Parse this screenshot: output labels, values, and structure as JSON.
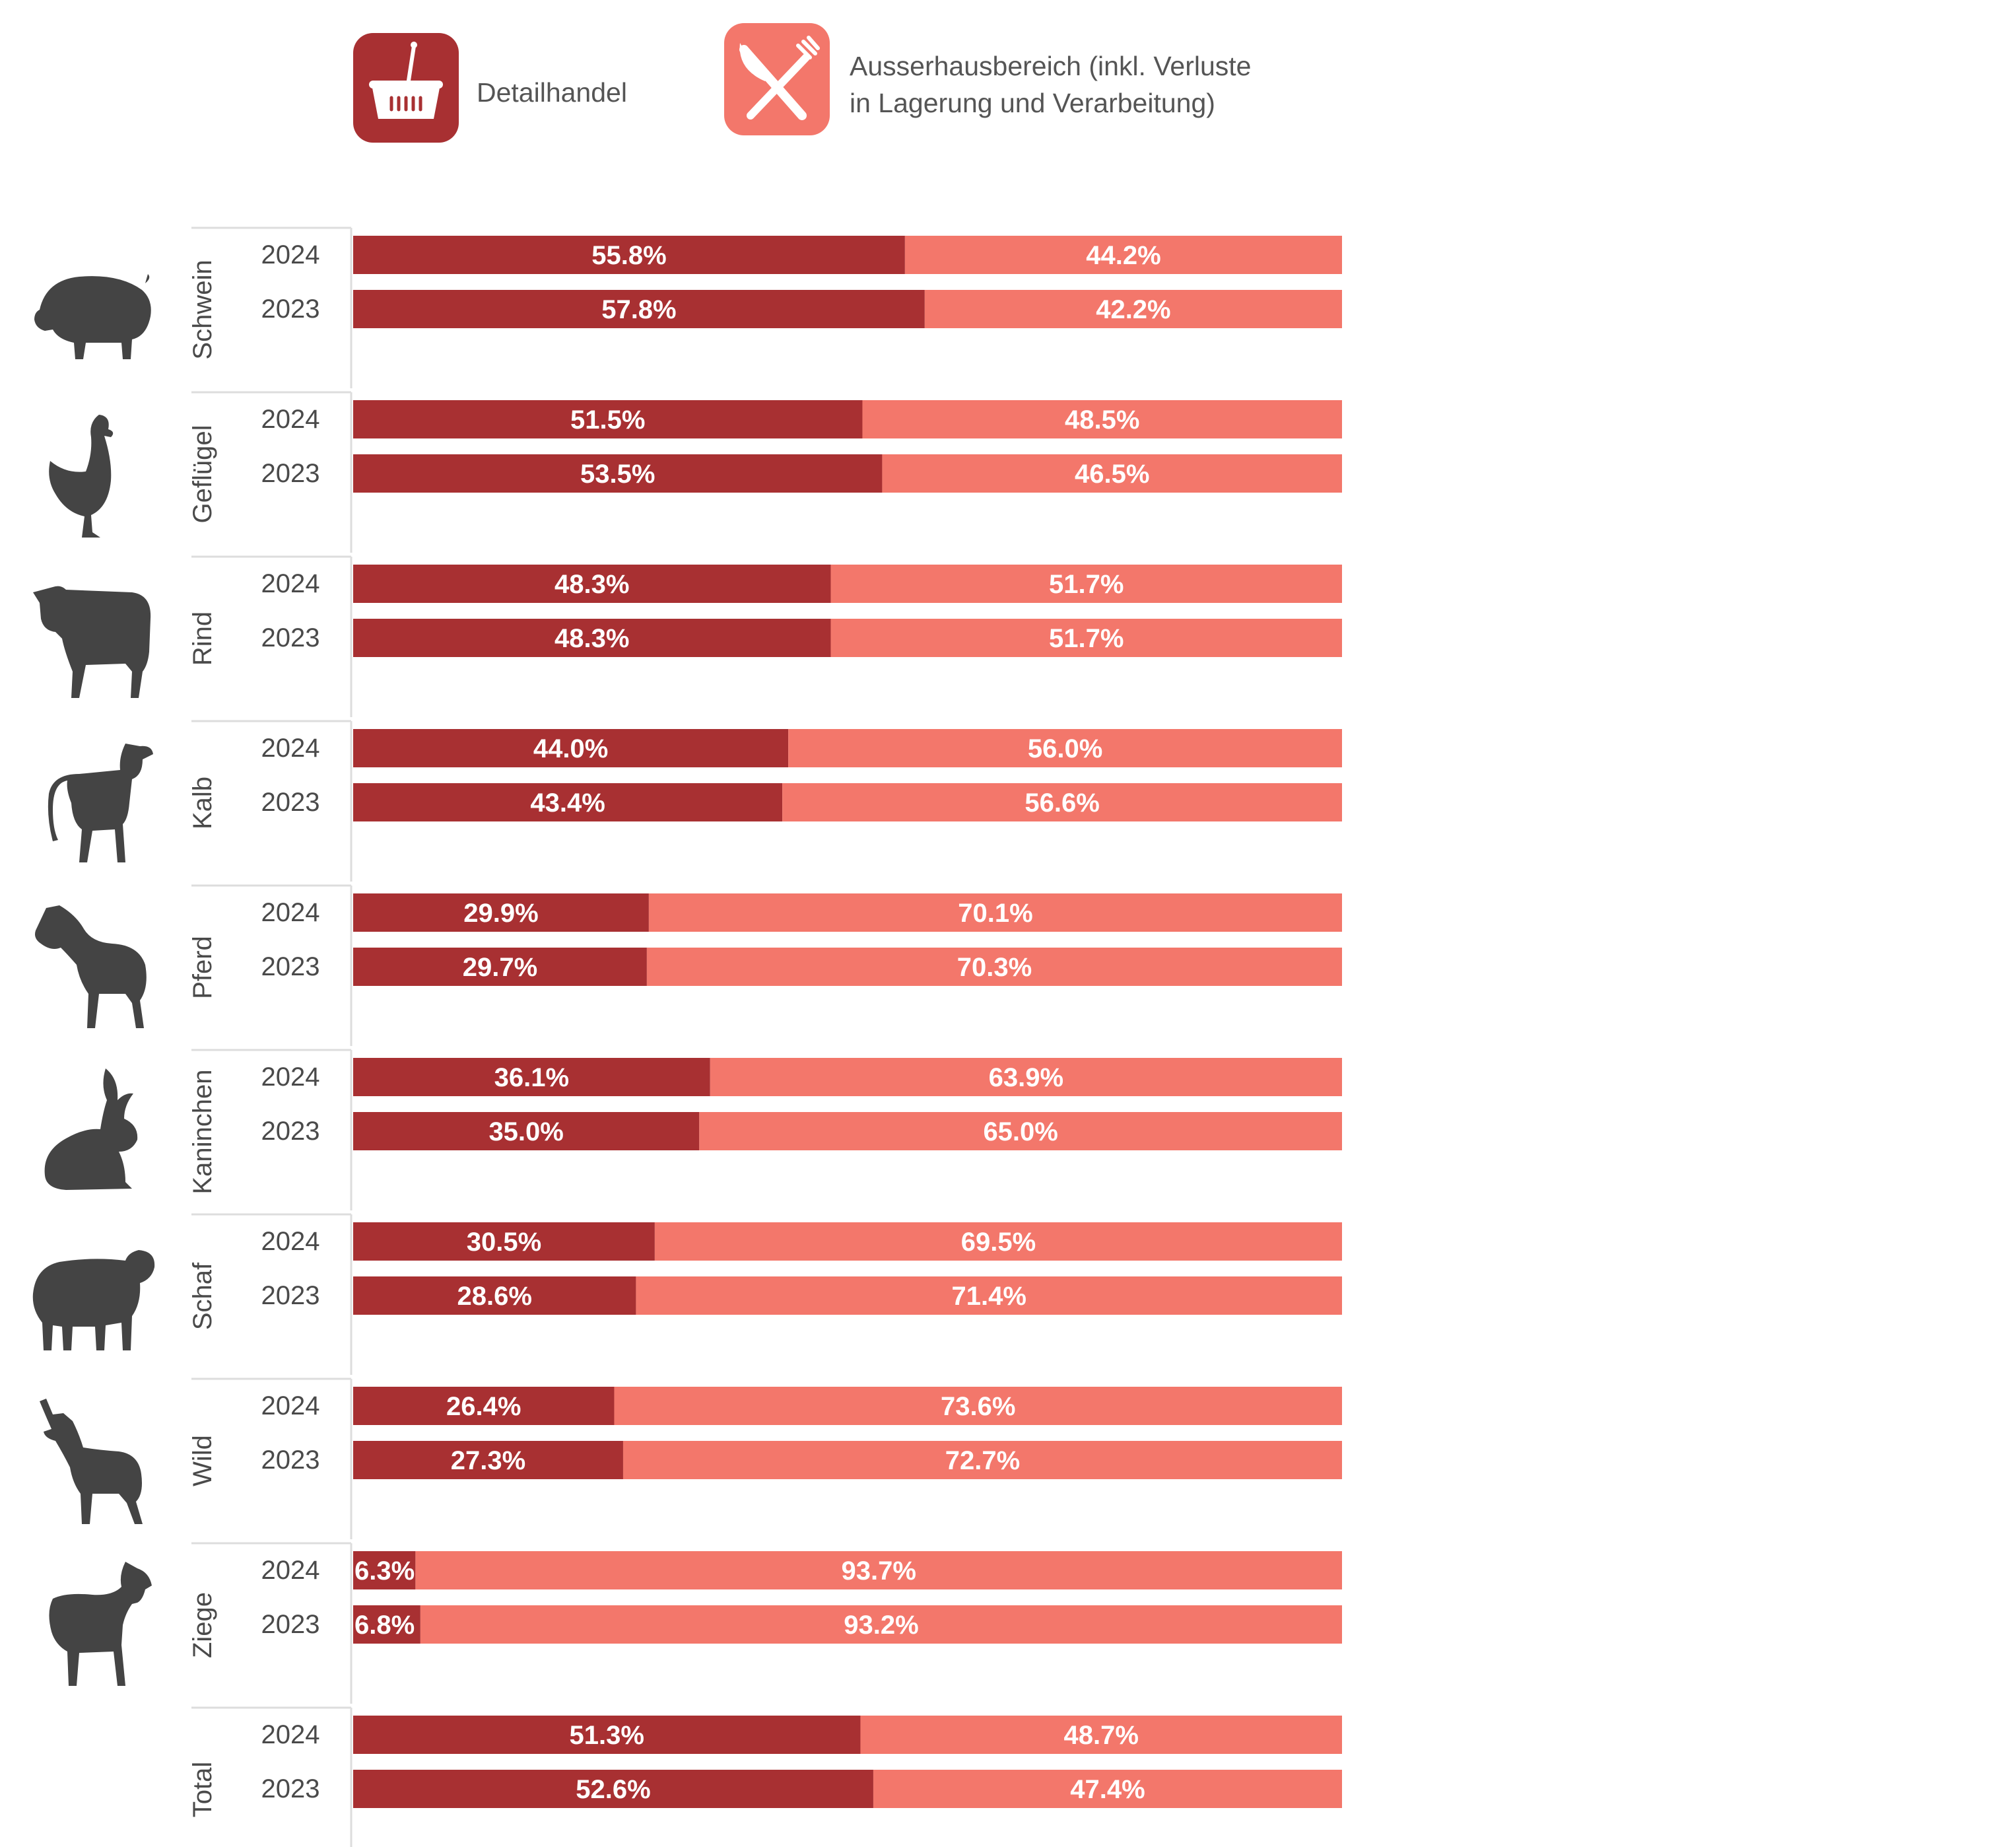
{
  "legend": {
    "detailhandel": {
      "label": "Detailhandel",
      "color": "#a83032",
      "icon": "shopping-basket-icon"
    },
    "ausserhaus": {
      "label_line1": "Ausserhausbereich (inkl. Verluste",
      "label_line2": "in Lagerung und Verarbeitung)",
      "color": "#f3776b",
      "icon": "fork-knife-icon"
    }
  },
  "chart_data": {
    "type": "bar",
    "orientation": "horizontal",
    "stacked": true,
    "normalized": true,
    "x_range": [
      0,
      100
    ],
    "unit": "%",
    "series": [
      {
        "name": "Detailhandel",
        "color": "#a83032"
      },
      {
        "name": "Ausserhausbereich (inkl. Verluste in Lagerung und Verarbeitung)",
        "color": "#f3776b"
      }
    ],
    "groups": [
      {
        "category": "Schwein",
        "icon": "pig-icon",
        "rows": [
          {
            "year": "2024",
            "detailhandel": 55.8,
            "ausserhaus": 44.2,
            "label_detail": "55.8%",
            "label_ausser": "44.2%"
          },
          {
            "year": "2023",
            "detailhandel": 57.8,
            "ausserhaus": 42.2,
            "label_detail": "57.8%",
            "label_ausser": "42.2%"
          }
        ]
      },
      {
        "category": "Geflügel",
        "icon": "chicken-icon",
        "rows": [
          {
            "year": "2024",
            "detailhandel": 51.5,
            "ausserhaus": 48.5,
            "label_detail": "51.5%",
            "label_ausser": "48.5%"
          },
          {
            "year": "2023",
            "detailhandel": 53.5,
            "ausserhaus": 46.5,
            "label_detail": "53.5%",
            "label_ausser": "46.5%"
          }
        ]
      },
      {
        "category": "Rind",
        "icon": "cow-icon",
        "rows": [
          {
            "year": "2024",
            "detailhandel": 48.3,
            "ausserhaus": 51.7,
            "label_detail": "48.3%",
            "label_ausser": "51.7%"
          },
          {
            "year": "2023",
            "detailhandel": 48.3,
            "ausserhaus": 51.7,
            "label_detail": "48.3%",
            "label_ausser": "51.7%"
          }
        ]
      },
      {
        "category": "Kalb",
        "icon": "calf-icon",
        "rows": [
          {
            "year": "2024",
            "detailhandel": 44.0,
            "ausserhaus": 56.0,
            "label_detail": "44.0%",
            "label_ausser": "56.0%"
          },
          {
            "year": "2023",
            "detailhandel": 43.4,
            "ausserhaus": 56.6,
            "label_detail": "43.4%",
            "label_ausser": "56.6%"
          }
        ]
      },
      {
        "category": "Pferd",
        "icon": "horse-icon",
        "rows": [
          {
            "year": "2024",
            "detailhandel": 29.9,
            "ausserhaus": 70.1,
            "label_detail": "29.9%",
            "label_ausser": "70.1%"
          },
          {
            "year": "2023",
            "detailhandel": 29.7,
            "ausserhaus": 70.3,
            "label_detail": "29.7%",
            "label_ausser": "70.3%"
          }
        ]
      },
      {
        "category": "Kaninchen",
        "icon": "rabbit-icon",
        "rows": [
          {
            "year": "2024",
            "detailhandel": 36.1,
            "ausserhaus": 63.9,
            "label_detail": "36.1%",
            "label_ausser": "63.9%"
          },
          {
            "year": "2023",
            "detailhandel": 35.0,
            "ausserhaus": 65.0,
            "label_detail": "35.0%",
            "label_ausser": "65.0%"
          }
        ]
      },
      {
        "category": "Schaf",
        "icon": "sheep-icon",
        "rows": [
          {
            "year": "2024",
            "detailhandel": 30.5,
            "ausserhaus": 69.5,
            "label_detail": "30.5%",
            "label_ausser": "69.5%"
          },
          {
            "year": "2023",
            "detailhandel": 28.6,
            "ausserhaus": 71.4,
            "label_detail": "28.6%",
            "label_ausser": "71.4%"
          }
        ]
      },
      {
        "category": "Wild",
        "icon": "deer-icon",
        "rows": [
          {
            "year": "2024",
            "detailhandel": 26.4,
            "ausserhaus": 73.6,
            "label_detail": "26.4%",
            "label_ausser": "73.6%"
          },
          {
            "year": "2023",
            "detailhandel": 27.3,
            "ausserhaus": 72.7,
            "label_detail": "27.3%",
            "label_ausser": "72.7%"
          }
        ]
      },
      {
        "category": "Ziege",
        "icon": "goat-icon",
        "rows": [
          {
            "year": "2024",
            "detailhandel": 6.3,
            "ausserhaus": 93.7,
            "label_detail": "6.3%",
            "label_ausser": "93.7%"
          },
          {
            "year": "2023",
            "detailhandel": 6.8,
            "ausserhaus": 93.2,
            "label_detail": "6.8%",
            "label_ausser": "93.2%"
          }
        ]
      },
      {
        "category": "Total",
        "icon": "",
        "rows": [
          {
            "year": "2024",
            "detailhandel": 51.3,
            "ausserhaus": 48.7,
            "label_detail": "51.3%",
            "label_ausser": "48.7%"
          },
          {
            "year": "2023",
            "detailhandel": 52.6,
            "ausserhaus": 47.4,
            "label_detail": "52.6%",
            "label_ausser": "47.4%"
          }
        ]
      }
    ]
  }
}
